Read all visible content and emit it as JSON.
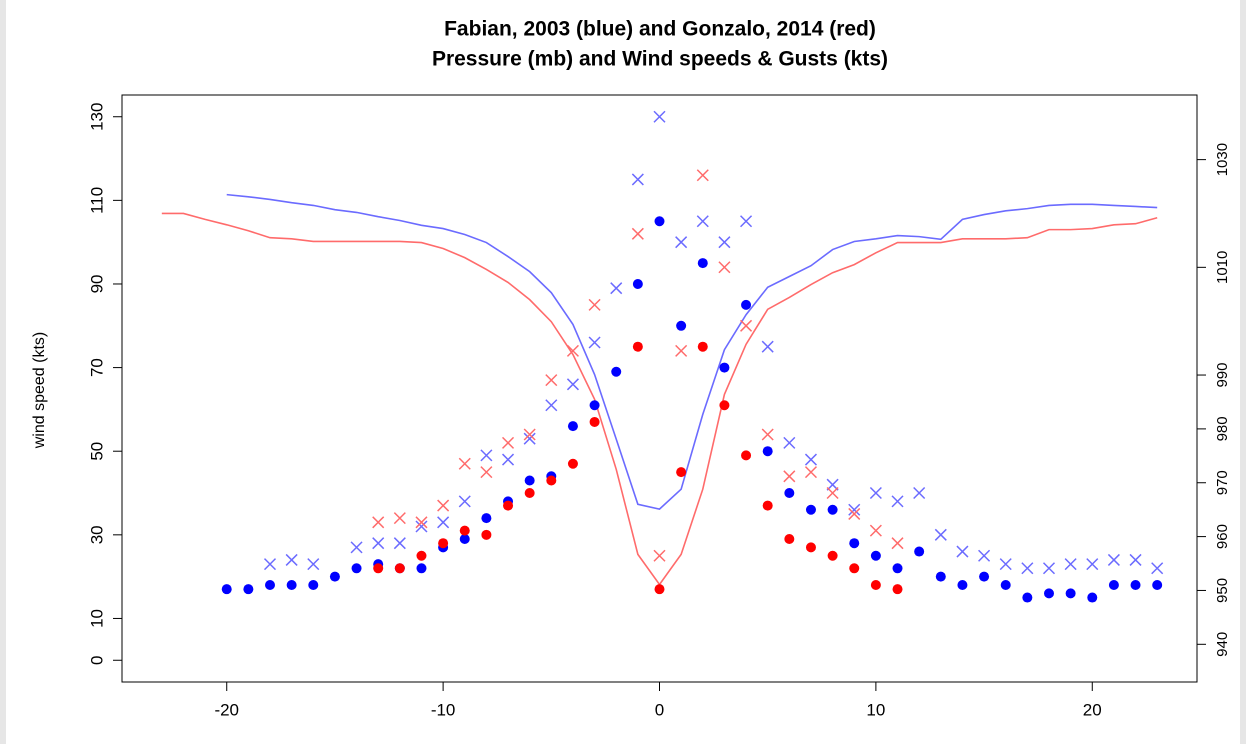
{
  "chart_data": {
    "type": "scatter",
    "title": "Fabian, 2003 (blue) and Gonzalo, 2014 (red)",
    "subtitle": "Pressure (mb) and Wind speeds & Gusts (kts)",
    "y_label": "wind speed (kts)",
    "xlim": [
      -24.84,
      24.84
    ],
    "xticks": [
      -20,
      -10,
      0,
      10,
      20
    ],
    "ylim": [
      -5.2,
      135.2
    ],
    "yticks": [
      0,
      10,
      30,
      50,
      70,
      90,
      110,
      130
    ],
    "y2lim": [
      933,
      1042
    ],
    "y2ticks": [
      940,
      950,
      960,
      970,
      980,
      990,
      1010,
      1030
    ],
    "series": [
      {
        "color": "#6b6bff",
        "mark": "line",
        "axis": "y2",
        "x": [
          -20,
          -19,
          -18,
          -17,
          -16,
          -15,
          -14,
          -13,
          -12,
          -11,
          -10,
          -9,
          -8,
          -7,
          -6,
          -5,
          -4,
          -3,
          -2,
          -1,
          0,
          1,
          2,
          3,
          4,
          5,
          6,
          7,
          8,
          9,
          10,
          11,
          12,
          13,
          14,
          15,
          16,
          17,
          18,
          19,
          20,
          21,
          22,
          23
        ],
        "values": [
          1023.5,
          1023.1,
          1022.6,
          1022.0,
          1021.5,
          1020.7,
          1020.2,
          1019.4,
          1018.7,
          1017.8,
          1017.2,
          1016.1,
          1014.6,
          1012.0,
          1009.2,
          1005.3,
          999.4,
          990.1,
          978.1,
          966.0,
          965.1,
          968.8,
          982.7,
          994.7,
          1001.2,
          1006.3,
          1008.3,
          1010.3,
          1013.3,
          1014.8,
          1015.3,
          1015.9,
          1015.7,
          1015.2,
          1018.9,
          1019.8,
          1020.5,
          1020.9,
          1021.5,
          1021.7,
          1021.7,
          1021.5,
          1021.3,
          1021.1
        ]
      },
      {
        "color": "#ff6b6b",
        "mark": "line",
        "axis": "y2",
        "x": [
          -23,
          -22,
          -21,
          -20,
          -19,
          -18,
          -17,
          -16,
          -15,
          -14,
          -13,
          -12,
          -11,
          -10,
          -9,
          -8,
          -7,
          -6,
          -5,
          -4,
          -3,
          -2,
          -1,
          0,
          1,
          2,
          3,
          4,
          5,
          6,
          7,
          8,
          9,
          10,
          11,
          12,
          13,
          14,
          15,
          16,
          17,
          18,
          19,
          20,
          21,
          22,
          23
        ],
        "values": [
          1020.0,
          1020.0,
          1018.9,
          1017.9,
          1016.8,
          1015.5,
          1015.3,
          1014.8,
          1014.8,
          1014.8,
          1014.8,
          1014.8,
          1014.6,
          1013.5,
          1011.8,
          1009.6,
          1007.2,
          1004.0,
          999.9,
          993.8,
          985.5,
          972.5,
          956.7,
          951.1,
          956.7,
          968.8,
          986.4,
          995.7,
          1002.2,
          1004.4,
          1006.8,
          1009.0,
          1010.5,
          1012.7,
          1014.6,
          1014.6,
          1014.6,
          1015.3,
          1015.3,
          1015.3,
          1015.5,
          1017.0,
          1017.0,
          1017.2,
          1017.9,
          1018.1,
          1019.2
        ]
      },
      {
        "color": "#0000ff",
        "mark": "dot",
        "x": [
          -20,
          -19,
          -18,
          -17,
          -16,
          -15,
          -14,
          -13,
          -12,
          -11,
          -10,
          -9,
          -8,
          -7,
          -6,
          -5,
          -4,
          -3,
          -2,
          -1,
          0,
          1,
          2,
          3,
          4,
          5,
          6,
          7,
          8,
          9,
          10,
          11,
          12,
          13,
          14,
          15,
          16,
          17,
          18,
          19,
          20,
          21,
          22,
          23
        ],
        "values": [
          17,
          17,
          18,
          18,
          18,
          20,
          22,
          23,
          22,
          22,
          27,
          29,
          34,
          38,
          43,
          44,
          56,
          61,
          69,
          90,
          105,
          80,
          95,
          70,
          85,
          50,
          40,
          36,
          36,
          28,
          25,
          22,
          26,
          20,
          18,
          20,
          18,
          15,
          16,
          16,
          15,
          18,
          18,
          18
        ]
      },
      {
        "color": "#6b6bff",
        "mark": "cross",
        "x": [
          -18,
          -17,
          -16,
          -14,
          -13,
          -12,
          -11,
          -10,
          -9,
          -8,
          -7,
          -6,
          -5,
          -4,
          -3,
          -2,
          -1,
          0,
          1,
          2,
          3,
          4,
          5,
          6,
          7,
          8,
          9,
          10,
          11,
          12,
          13,
          14,
          15,
          16,
          17,
          18,
          19,
          20,
          21,
          22,
          23
        ],
        "values": [
          23,
          24,
          23,
          27,
          28,
          28,
          32,
          33,
          38,
          49,
          48,
          53,
          61,
          66,
          76,
          89,
          115,
          130,
          100,
          105,
          100,
          105,
          75,
          52,
          48,
          42,
          36,
          40,
          38,
          40,
          30,
          26,
          25,
          23,
          22,
          22,
          23,
          23,
          24,
          24,
          22
        ]
      },
      {
        "color": "#ff0000",
        "mark": "dot",
        "x": [
          -13,
          -12,
          -11,
          -10,
          -9,
          -8,
          -7,
          -6,
          -5,
          -4,
          -3,
          -1,
          0,
          1,
          2,
          3,
          4,
          5,
          6,
          7,
          8,
          9,
          10,
          11
        ],
        "values": [
          22,
          22,
          25,
          28,
          31,
          30,
          37,
          40,
          43,
          47,
          57,
          75,
          17,
          45,
          75,
          61,
          49,
          37,
          29,
          27,
          25,
          22,
          18,
          17
        ]
      },
      {
        "color": "#ff6b6b",
        "mark": "cross",
        "x": [
          -13,
          -12,
          -11,
          -10,
          -9,
          -8,
          -7,
          -6,
          -5,
          -4,
          -3,
          -1,
          0,
          1,
          2,
          3,
          4,
          5,
          6,
          7,
          8,
          9,
          10,
          11
        ],
        "values": [
          33,
          34,
          33,
          37,
          47,
          45,
          52,
          54,
          67,
          74,
          85,
          102,
          25,
          74,
          116,
          94,
          80,
          54,
          44,
          45,
          40,
          35,
          31,
          28
        ]
      }
    ]
  }
}
